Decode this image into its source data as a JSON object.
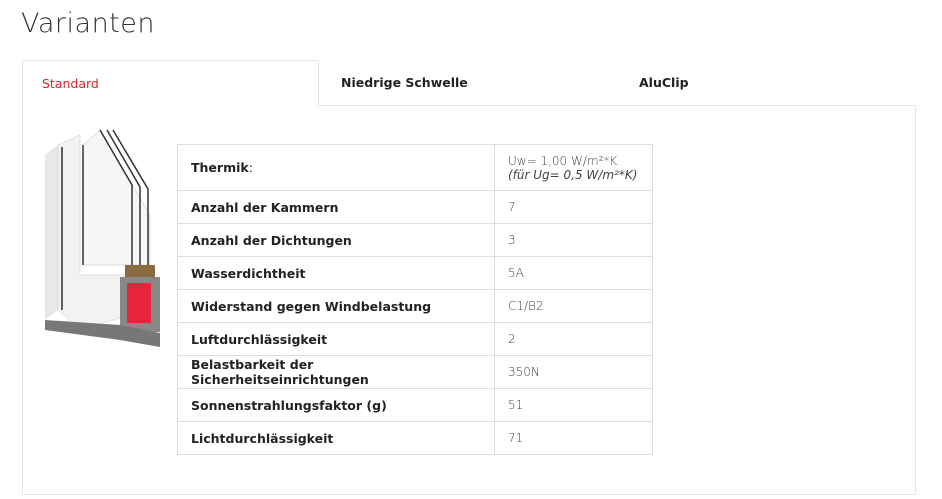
{
  "title": "Varianten",
  "tabs": [
    {
      "label": "Standard",
      "active": true
    },
    {
      "label": "Niedrige Schwelle"
    },
    {
      "label": "AluClip"
    }
  ],
  "accent_color": "#d9262b",
  "thermik": {
    "label": "Thermik",
    "suffix": ":",
    "value": "Uw= 1,00 W/m²*K",
    "note": "(für Ug= 0,5 W/m²*K)"
  },
  "rows": [
    {
      "label": "Anzahl der Kammern",
      "value": "7"
    },
    {
      "label": "Anzahl der Dichtungen",
      "value": "3"
    },
    {
      "label": "Wasserdichtheit",
      "value": "5A"
    },
    {
      "label": "Widerstand gegen Windbelastung",
      "value": "C1/B2"
    },
    {
      "label": "Luftdurchlässigkeit",
      "value": "2"
    },
    {
      "label": "Belastbarkeit der Sicherheitseinrichtungen",
      "value": "350N"
    },
    {
      "label": "Sonnenstrahlungsfaktor (g)",
      "value": "51"
    },
    {
      "label": "Lichtdurchlässigkeit",
      "value": "71"
    }
  ]
}
